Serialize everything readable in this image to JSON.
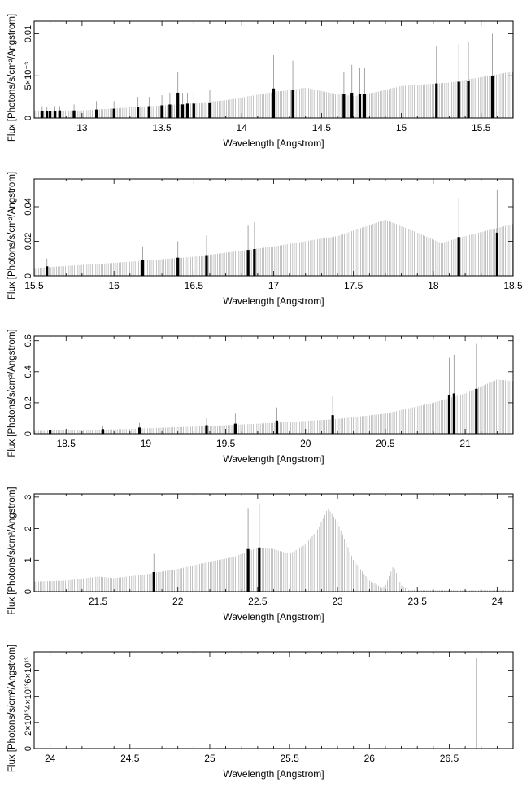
{
  "figure": {
    "type": "spectrum-panels",
    "tick_color": "#000000",
    "model_color": "#b4b4b4",
    "line_color": "#000000"
  },
  "chart_data": [
    {
      "type": "bar",
      "xlabel": "Wavelength [Angstrom]",
      "ylabel": "Flux [Photons/s/cm²/Angstrom]",
      "xlim": [
        12.7,
        15.7
      ],
      "ylim": [
        0,
        0.0115
      ],
      "x_ticks": [
        {
          "v": 13,
          "label": "13"
        },
        {
          "v": 13.5,
          "label": "13.5"
        },
        {
          "v": 14,
          "label": "14"
        },
        {
          "v": 14.5,
          "label": "14.5"
        },
        {
          "v": 15,
          "label": "15"
        },
        {
          "v": 15.5,
          "label": "15.5"
        }
      ],
      "y_ticks": [
        {
          "v": 0,
          "label": "0"
        },
        {
          "v": 0.005,
          "label": "5×10⁻³"
        },
        {
          "v": 0.01,
          "label": "0.01"
        }
      ],
      "continuum": [
        [
          12.7,
          0.0008
        ],
        [
          13.0,
          0.0009
        ],
        [
          13.3,
          0.00125
        ],
        [
          13.6,
          0.0016
        ],
        [
          13.9,
          0.0021
        ],
        [
          14.2,
          0.0031
        ],
        [
          14.3,
          0.0033
        ],
        [
          14.4,
          0.0036
        ],
        [
          14.55,
          0.003
        ],
        [
          14.7,
          0.0026
        ],
        [
          14.85,
          0.0031
        ],
        [
          15.0,
          0.0038
        ],
        [
          15.3,
          0.0042
        ],
        [
          15.7,
          0.0055
        ]
      ],
      "lines": [
        {
          "x": 12.75,
          "peak": 0.0014,
          "level": 0.0008
        },
        {
          "x": 12.78,
          "peak": 0.0013,
          "level": 0.0008
        },
        {
          "x": 12.8,
          "peak": 0.0014,
          "level": 0.0008
        },
        {
          "x": 12.83,
          "peak": 0.0014,
          "level": 0.0008
        },
        {
          "x": 12.86,
          "peak": 0.0014,
          "level": 0.0009
        },
        {
          "x": 12.95,
          "peak": 0.0016,
          "level": 0.0009
        },
        {
          "x": 13.09,
          "peak": 0.002,
          "level": 0.001
        },
        {
          "x": 13.2,
          "peak": 0.002,
          "level": 0.0011
        },
        {
          "x": 13.35,
          "peak": 0.0025,
          "level": 0.0013
        },
        {
          "x": 13.42,
          "peak": 0.0025,
          "level": 0.0014
        },
        {
          "x": 13.5,
          "peak": 0.0027,
          "level": 0.0015
        },
        {
          "x": 13.55,
          "peak": 0.003,
          "level": 0.0016
        },
        {
          "x": 13.6,
          "peak": 0.0055,
          "level": 0.003
        },
        {
          "x": 13.63,
          "peak": 0.003,
          "level": 0.0016
        },
        {
          "x": 13.66,
          "peak": 0.003,
          "level": 0.0017
        },
        {
          "x": 13.7,
          "peak": 0.003,
          "level": 0.0017
        },
        {
          "x": 13.8,
          "peak": 0.0033,
          "level": 0.0018
        },
        {
          "x": 14.2,
          "peak": 0.0075,
          "level": 0.0035
        },
        {
          "x": 14.32,
          "peak": 0.0068,
          "level": 0.0033
        },
        {
          "x": 14.64,
          "peak": 0.0055,
          "level": 0.0028
        },
        {
          "x": 14.69,
          "peak": 0.0063,
          "level": 0.003
        },
        {
          "x": 14.74,
          "peak": 0.006,
          "level": 0.0029
        },
        {
          "x": 14.77,
          "peak": 0.006,
          "level": 0.0029
        },
        {
          "x": 15.22,
          "peak": 0.0085,
          "level": 0.0041
        },
        {
          "x": 15.36,
          "peak": 0.0088,
          "level": 0.0043
        },
        {
          "x": 15.42,
          "peak": 0.009,
          "level": 0.0044
        },
        {
          "x": 15.57,
          "peak": 0.01,
          "level": 0.005
        }
      ]
    },
    {
      "type": "bar",
      "xlabel": "Wavelength [Angstrom]",
      "ylabel": "Flux [Photons/s/cm²/Angstrom]",
      "xlim": [
        15.5,
        18.5
      ],
      "ylim": [
        0,
        0.056
      ],
      "x_ticks": [
        {
          "v": 15.5,
          "label": "15.5"
        },
        {
          "v": 16,
          "label": "16"
        },
        {
          "v": 16.5,
          "label": "16.5"
        },
        {
          "v": 17,
          "label": "17"
        },
        {
          "v": 17.5,
          "label": "17.5"
        },
        {
          "v": 18,
          "label": "18"
        },
        {
          "v": 18.5,
          "label": "18.5"
        }
      ],
      "y_ticks": [
        {
          "v": 0,
          "label": "0"
        },
        {
          "v": 0.02,
          "label": "0.02"
        },
        {
          "v": 0.04,
          "label": "0.04"
        }
      ],
      "continuum": [
        [
          15.5,
          0.0045
        ],
        [
          16.0,
          0.0075
        ],
        [
          16.5,
          0.011
        ],
        [
          17.0,
          0.017
        ],
        [
          17.4,
          0.023
        ],
        [
          17.7,
          0.0325
        ],
        [
          17.9,
          0.025
        ],
        [
          18.05,
          0.019
        ],
        [
          18.2,
          0.023
        ],
        [
          18.5,
          0.03
        ]
      ],
      "lines": [
        {
          "x": 15.58,
          "peak": 0.01,
          "level": 0.0055
        },
        {
          "x": 16.18,
          "peak": 0.017,
          "level": 0.009
        },
        {
          "x": 16.4,
          "peak": 0.02,
          "level": 0.0105
        },
        {
          "x": 16.58,
          "peak": 0.0235,
          "level": 0.012
        },
        {
          "x": 16.84,
          "peak": 0.029,
          "level": 0.015
        },
        {
          "x": 16.88,
          "peak": 0.031,
          "level": 0.0155
        },
        {
          "x": 18.16,
          "peak": 0.045,
          "level": 0.0225
        },
        {
          "x": 18.4,
          "peak": 0.05,
          "level": 0.025
        }
      ]
    },
    {
      "type": "bar",
      "xlabel": "Wavelength [Angstrom]",
      "ylabel": "Flux [Photons/s/cm²/Angstrom]",
      "xlim": [
        18.3,
        21.3
      ],
      "ylim": [
        0,
        0.63
      ],
      "x_ticks": [
        {
          "v": 18.5,
          "label": "18.5"
        },
        {
          "v": 19,
          "label": "19"
        },
        {
          "v": 19.5,
          "label": "19.5"
        },
        {
          "v": 20,
          "label": "20"
        },
        {
          "v": 20.5,
          "label": "20.5"
        },
        {
          "v": 21,
          "label": "21"
        }
      ],
      "y_ticks": [
        {
          "v": 0,
          "label": "0"
        },
        {
          "v": 0.2,
          "label": "0.2"
        },
        {
          "v": 0.4,
          "label": "0.4"
        },
        {
          "v": 0.6,
          "label": "0.6"
        }
      ],
      "continuum": [
        [
          18.3,
          0.018
        ],
        [
          18.7,
          0.025
        ],
        [
          19.0,
          0.035
        ],
        [
          19.4,
          0.05
        ],
        [
          19.8,
          0.07
        ],
        [
          20.2,
          0.095
        ],
        [
          20.5,
          0.13
        ],
        [
          20.8,
          0.2
        ],
        [
          21.0,
          0.26
        ],
        [
          21.2,
          0.35
        ],
        [
          21.3,
          0.34
        ]
      ],
      "lines": [
        {
          "x": 18.4,
          "peak": 0.03,
          "level": 0.025
        },
        {
          "x": 18.73,
          "peak": 0.05,
          "level": 0.03
        },
        {
          "x": 18.96,
          "peak": 0.07,
          "level": 0.04
        },
        {
          "x": 19.38,
          "peak": 0.1,
          "level": 0.055
        },
        {
          "x": 19.56,
          "peak": 0.13,
          "level": 0.065
        },
        {
          "x": 19.82,
          "peak": 0.17,
          "level": 0.085
        },
        {
          "x": 20.17,
          "peak": 0.24,
          "level": 0.12
        },
        {
          "x": 20.9,
          "peak": 0.49,
          "level": 0.25
        },
        {
          "x": 20.93,
          "peak": 0.51,
          "level": 0.26
        },
        {
          "x": 21.07,
          "peak": 0.58,
          "level": 0.29
        }
      ]
    },
    {
      "type": "bar",
      "xlabel": "Wavelength [Angstrom]",
      "ylabel": "Flux [Photons/s/cm²/Angstrom]",
      "xlim": [
        21.1,
        24.1
      ],
      "ylim": [
        0,
        3.1
      ],
      "x_ticks": [
        {
          "v": 21.5,
          "label": "21.5"
        },
        {
          "v": 22,
          "label": "22"
        },
        {
          "v": 22.5,
          "label": "22.5"
        },
        {
          "v": 23,
          "label": "23"
        },
        {
          "v": 23.5,
          "label": "23.5"
        },
        {
          "v": 24,
          "label": "24"
        }
      ],
      "y_ticks": [
        {
          "v": 0,
          "label": "0"
        },
        {
          "v": 1,
          "label": "1"
        },
        {
          "v": 2,
          "label": "2"
        },
        {
          "v": 3,
          "label": "3"
        }
      ],
      "continuum": [
        [
          21.1,
          0.32
        ],
        [
          21.3,
          0.35
        ],
        [
          21.5,
          0.48
        ],
        [
          21.6,
          0.43
        ],
        [
          21.8,
          0.55
        ],
        [
          22.0,
          0.72
        ],
        [
          22.2,
          0.95
        ],
        [
          22.35,
          1.1
        ],
        [
          22.5,
          1.4
        ],
        [
          22.6,
          1.35
        ],
        [
          22.7,
          1.2
        ],
        [
          22.8,
          1.5
        ],
        [
          22.88,
          2.0
        ],
        [
          22.94,
          2.65
        ],
        [
          23.0,
          2.2
        ],
        [
          23.1,
          1.0
        ],
        [
          23.2,
          0.35
        ],
        [
          23.28,
          0.12
        ],
        [
          23.3,
          0.2
        ],
        [
          23.35,
          0.82
        ],
        [
          23.4,
          0.2
        ],
        [
          23.45,
          0.05
        ],
        [
          24.1,
          0.05
        ]
      ],
      "lines": [
        {
          "x": 21.85,
          "peak": 1.2,
          "level": 0.62
        },
        {
          "x": 22.44,
          "peak": 2.65,
          "level": 1.35
        },
        {
          "x": 22.51,
          "peak": 2.8,
          "level": 1.4
        }
      ]
    },
    {
      "type": "bar",
      "xlabel": "Wavelength [Angstrom]",
      "ylabel": "Flux [Photons/s/cm²/Angstrom]",
      "xlim": [
        23.9,
        26.9
      ],
      "ylim": [
        0,
        74000000000000.0
      ],
      "x_ticks": [
        {
          "v": 24,
          "label": "24"
        },
        {
          "v": 24.5,
          "label": "24.5"
        },
        {
          "v": 25,
          "label": "25"
        },
        {
          "v": 25.5,
          "label": "25.5"
        },
        {
          "v": 26,
          "label": "26"
        },
        {
          "v": 26.5,
          "label": "26.5"
        }
      ],
      "y_ticks": [
        {
          "v": 0,
          "label": "0"
        },
        {
          "v": 20000000000000.0,
          "label": "2×10¹³"
        },
        {
          "v": 40000000000000.0,
          "label": "4×10¹³"
        },
        {
          "v": 60000000000000.0,
          "label": "6×10¹³"
        }
      ],
      "continuum": [
        [
          23.9,
          0
        ],
        [
          26.9,
          0
        ]
      ],
      "lines": [
        {
          "x": 26.67,
          "peak": 69000000000000.0,
          "level": 0
        }
      ]
    }
  ]
}
